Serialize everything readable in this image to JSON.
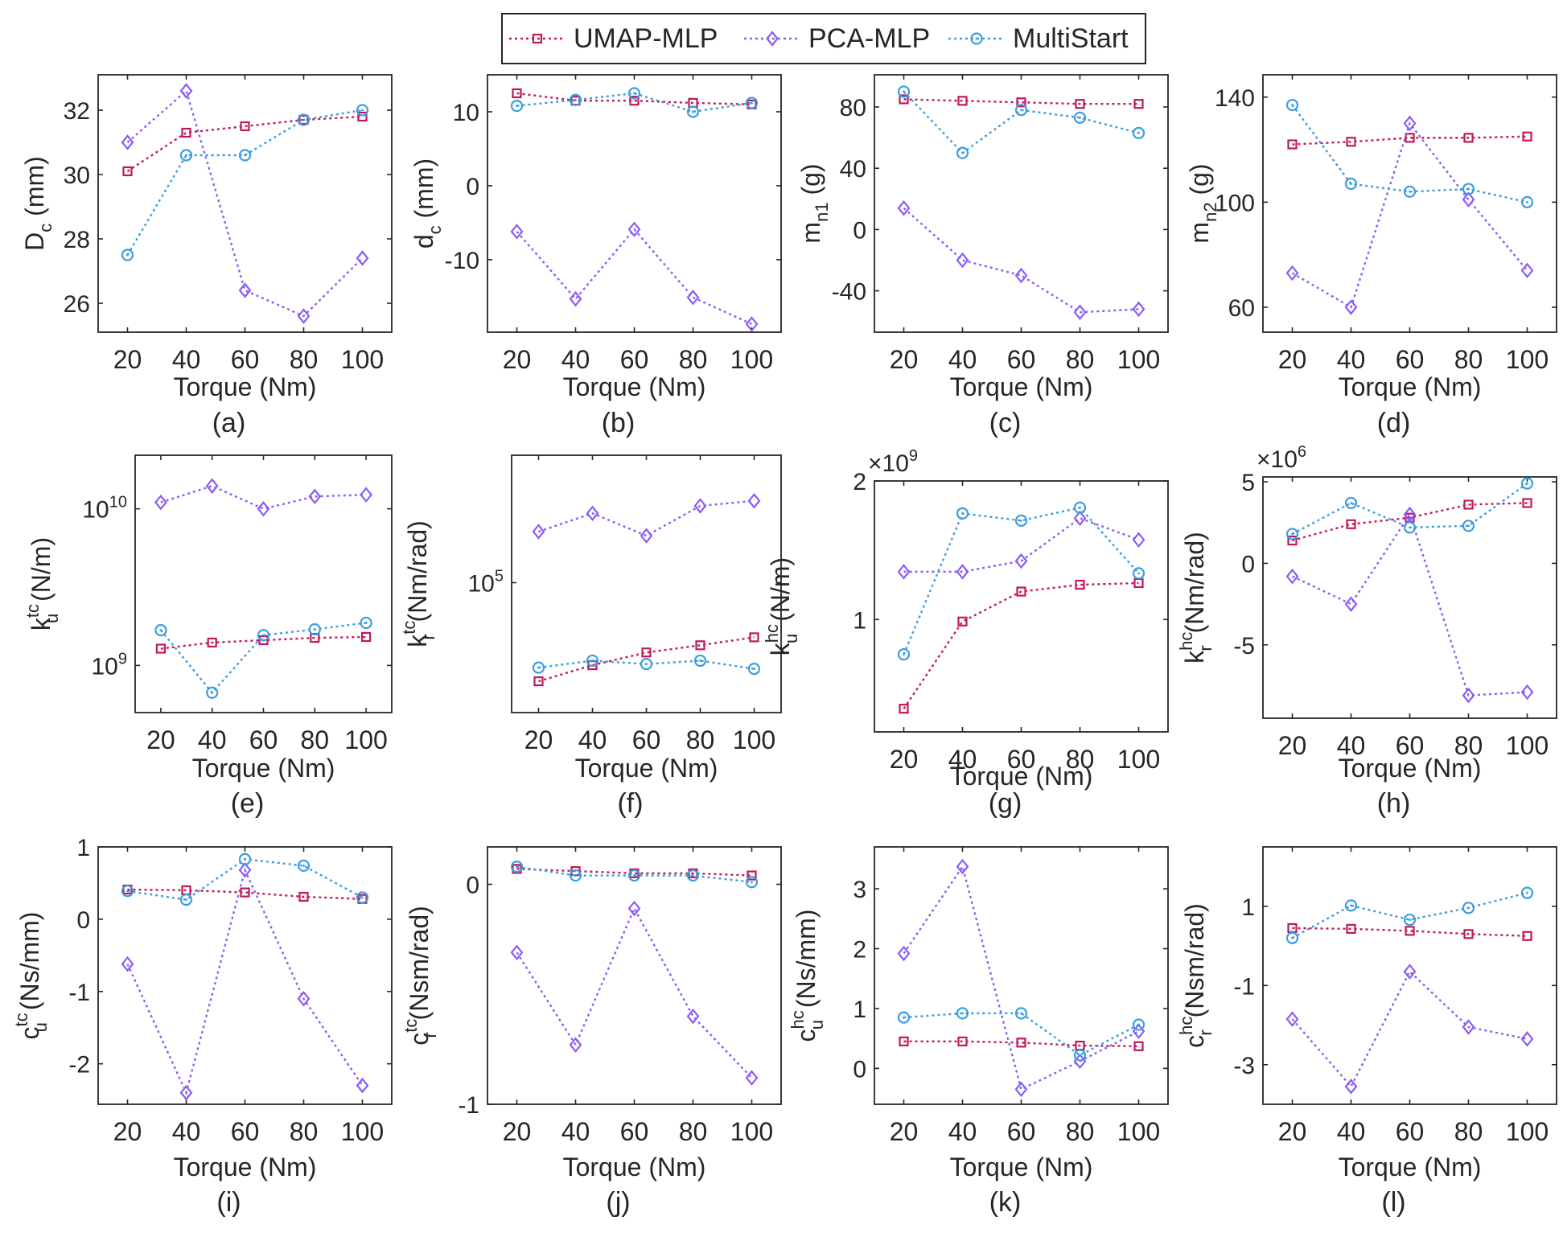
{
  "style": {
    "series_colors": {
      "UMAP-MLP": "#c2185b",
      "PCA-MLP": "#8b5cf6",
      "MultiStart": "#3b9de0"
    },
    "series_markers": {
      "UMAP-MLP": "square",
      "PCA-MLP": "diamond",
      "MultiStart": "circle"
    },
    "line_style": "dotted"
  },
  "legend": {
    "items": [
      "UMAP-MLP",
      "PCA-MLP",
      "MultiStart"
    ],
    "placement": "top-center"
  },
  "chart_data": [
    {
      "panel": "(a)",
      "type": "line",
      "xlabel": "Torque (Nm)",
      "ylabel": "D",
      "ylabel_sub": "c",
      "ylabel_unit": " (mm)",
      "x": [
        20,
        40,
        60,
        80,
        100
      ],
      "xlim": [
        10,
        110
      ],
      "ylim": [
        25.1,
        33.1
      ],
      "yticks": [
        26,
        28,
        30,
        32
      ],
      "ytick_labels": [
        "26",
        "28",
        "30",
        "32"
      ],
      "yscale": "linear",
      "series": [
        {
          "name": "UMAP-MLP",
          "values": [
            30.1,
            31.3,
            31.5,
            31.7,
            31.8
          ]
        },
        {
          "name": "PCA-MLP",
          "values": [
            31.0,
            32.6,
            26.4,
            25.6,
            27.4
          ]
        },
        {
          "name": "MultiStart",
          "values": [
            27.5,
            30.6,
            30.6,
            31.7,
            32.0
          ]
        }
      ]
    },
    {
      "panel": "(b)",
      "type": "line",
      "xlabel": "Torque (Nm)",
      "ylabel": "d",
      "ylabel_sub": "c",
      "ylabel_unit": " (mm)",
      "x": [
        20,
        40,
        60,
        80,
        100
      ],
      "xlim": [
        10,
        110
      ],
      "ylim": [
        -19.8,
        15
      ],
      "yticks": [
        -10,
        0,
        10
      ],
      "ytick_labels": [
        "-10",
        "0",
        "10"
      ],
      "yscale": "linear",
      "series": [
        {
          "name": "UMAP-MLP",
          "values": [
            12.5,
            11.5,
            11.5,
            11.2,
            11.0
          ]
        },
        {
          "name": "PCA-MLP",
          "values": [
            -6.2,
            -15.3,
            -5.9,
            -15.1,
            -18.7
          ]
        },
        {
          "name": "MultiStart",
          "values": [
            10.8,
            11.6,
            12.5,
            10.0,
            11.2
          ]
        }
      ]
    },
    {
      "panel": "(c)",
      "type": "line",
      "xlabel": "Torque (Nm)",
      "ylabel": "m",
      "ylabel_sub": "n1",
      "ylabel_unit": " (g)",
      "x": [
        20,
        40,
        60,
        80,
        100
      ],
      "xlim": [
        10,
        110
      ],
      "ylim": [
        -67,
        101
      ],
      "yticks": [
        -40,
        0,
        40,
        80
      ],
      "ytick_labels": [
        "-40",
        "0",
        "40",
        "80"
      ],
      "yscale": "linear",
      "series": [
        {
          "name": "UMAP-MLP",
          "values": [
            85,
            84,
            83,
            82,
            82
          ]
        },
        {
          "name": "PCA-MLP",
          "values": [
            14,
            -20,
            -30,
            -54,
            -52
          ]
        },
        {
          "name": "MultiStart",
          "values": [
            90,
            50,
            78,
            73,
            63
          ]
        }
      ]
    },
    {
      "panel": "(d)",
      "type": "line",
      "xlabel": "Torque (Nm)",
      "ylabel": "m",
      "ylabel_sub": "n2",
      "ylabel_unit": " (g)",
      "x": [
        20,
        40,
        60,
        80,
        100
      ],
      "xlim": [
        10,
        110
      ],
      "ylim": [
        50.5,
        148.5
      ],
      "yticks": [
        60,
        100,
        140
      ],
      "ytick_labels": [
        "60",
        "100",
        "140"
      ],
      "yscale": "linear",
      "series": [
        {
          "name": "UMAP-MLP",
          "values": [
            122,
            123,
            124.5,
            124.5,
            125
          ]
        },
        {
          "name": "PCA-MLP",
          "values": [
            73,
            60,
            130,
            101,
            74
          ]
        },
        {
          "name": "MultiStart",
          "values": [
            137,
            107,
            104,
            105,
            100
          ]
        }
      ]
    },
    {
      "panel": "(e)",
      "type": "line",
      "xlabel": "Torque (Nm)",
      "ylabel": "k",
      "ylabel_sub": "u",
      "ylabel_sup": "tc",
      "ylabel_unit": " (N/m)",
      "x": [
        20,
        40,
        60,
        80,
        100
      ],
      "xlim": [
        10,
        110
      ],
      "ylim": [
        500000000,
        22000000000
      ],
      "yticks": [
        1000000000,
        10000000000
      ],
      "ytick_labels": [
        "10|9",
        "10|10"
      ],
      "yscale": "log",
      "series": [
        {
          "name": "UMAP-MLP",
          "values": [
            1280000000,
            1400000000,
            1450000000,
            1500000000,
            1520000000
          ]
        },
        {
          "name": "PCA-MLP",
          "values": [
            11000000000,
            14000000000,
            10000000000,
            12000000000,
            12300000000
          ]
        },
        {
          "name": "MultiStart",
          "values": [
            1680000000,
            670000000,
            1560000000,
            1700000000,
            1870000000
          ]
        }
      ]
    },
    {
      "panel": "(f)",
      "type": "line",
      "xlabel": "Torque (Nm)",
      "ylabel": "k",
      "ylabel_sub": "r",
      "ylabel_sup": "tc",
      "ylabel_unit": " (Nm/rad)",
      "x": [
        20,
        40,
        60,
        80,
        100
      ],
      "xlim": [
        10,
        110
      ],
      "ylim": [
        12000,
        800000
      ],
      "yticks": [
        100000
      ],
      "ytick_labels": [
        "10|5"
      ],
      "yscale": "log",
      "series": [
        {
          "name": "UMAP-MLP",
          "values": [
            20000,
            26000,
            32000,
            36000,
            41000
          ]
        },
        {
          "name": "PCA-MLP",
          "values": [
            230000,
            310000,
            215000,
            350000,
            380000
          ]
        },
        {
          "name": "MultiStart",
          "values": [
            25000,
            28000,
            26500,
            28000,
            24500
          ]
        }
      ]
    },
    {
      "panel": "(g)",
      "type": "line",
      "xlabel": "Torque (Nm)",
      "ylabel": "k",
      "ylabel_sub": "u",
      "ylabel_sup": "hc",
      "ylabel_unit": " (N/m)",
      "x": [
        20,
        40,
        60,
        80,
        100
      ],
      "xlim": [
        10,
        110
      ],
      "ylim": [
        0.57,
        2.0
      ],
      "axis_multiplier": "×10|9",
      "yticks": [
        1,
        2
      ],
      "ytick_labels": [
        "1",
        "2"
      ],
      "yscale": "log",
      "series": [
        {
          "name": "UMAP-MLP",
          "values": [
            0.64,
            0.99,
            1.15,
            1.19,
            1.2
          ]
        },
        {
          "name": "PCA-MLP",
          "values": [
            1.27,
            1.27,
            1.34,
            1.66,
            1.49
          ]
        },
        {
          "name": "MultiStart",
          "values": [
            0.84,
            1.7,
            1.64,
            1.75,
            1.26
          ]
        }
      ]
    },
    {
      "panel": "(h)",
      "type": "line",
      "xlabel": "Torque (Nm)",
      "ylabel": "k",
      "ylabel_sub": "r",
      "ylabel_sup": "hc",
      "ylabel_unit": " (Nm/rad)",
      "x": [
        20,
        40,
        60,
        80,
        100
      ],
      "xlim": [
        10,
        110
      ],
      "ylim": [
        -9.5,
        5.3
      ],
      "axis_multiplier": "×10|6",
      "yticks": [
        -5,
        0,
        5
      ],
      "ytick_labels": [
        "-5",
        "0",
        "5"
      ],
      "yscale": "linear",
      "series": [
        {
          "name": "UMAP-MLP",
          "values": [
            1.4,
            2.4,
            2.8,
            3.6,
            3.7
          ]
        },
        {
          "name": "PCA-MLP",
          "values": [
            -0.8,
            -2.5,
            3.0,
            -8.1,
            -7.9
          ]
        },
        {
          "name": "MultiStart",
          "values": [
            1.8,
            3.7,
            2.2,
            2.3,
            4.9
          ]
        }
      ]
    },
    {
      "panel": "(i)",
      "type": "line",
      "xlabel": "Torque (Nm)",
      "ylabel": "c",
      "ylabel_sub": "u",
      "ylabel_sup": "tc",
      "ylabel_unit": " (Ns/mm)",
      "x": [
        20,
        40,
        60,
        80,
        100
      ],
      "xlim": [
        10,
        110
      ],
      "ylim": [
        -2.56,
        1.0
      ],
      "yticks": [
        -2,
        -1,
        0,
        1
      ],
      "ytick_labels": [
        "-2",
        "-1",
        "0",
        "1"
      ],
      "yscale": "linear",
      "series": [
        {
          "name": "UMAP-MLP",
          "values": [
            0.41,
            0.4,
            0.37,
            0.31,
            0.28
          ]
        },
        {
          "name": "PCA-MLP",
          "values": [
            -0.62,
            -2.4,
            0.68,
            -1.1,
            -2.3
          ]
        },
        {
          "name": "MultiStart",
          "values": [
            0.39,
            0.27,
            0.83,
            0.74,
            0.3
          ]
        }
      ]
    },
    {
      "panel": "(j)",
      "type": "line",
      "xlabel": "Torque (Nm)",
      "ylabel": "c",
      "ylabel_sub": "r",
      "ylabel_sup": "tc",
      "ylabel_unit": " (Nsm/rad)",
      "x": [
        20,
        40,
        60,
        80,
        100
      ],
      "xlim": [
        10,
        110
      ],
      "ylim": [
        -1.0,
        0.17
      ],
      "yticks": [
        -1,
        0
      ],
      "ytick_labels": [
        "-1",
        "0"
      ],
      "yscale": "linear",
      "series": [
        {
          "name": "UMAP-MLP",
          "values": [
            0.07,
            0.06,
            0.05,
            0.05,
            0.04
          ]
        },
        {
          "name": "PCA-MLP",
          "values": [
            -0.31,
            -0.73,
            -0.11,
            -0.6,
            -0.88
          ]
        },
        {
          "name": "MultiStart",
          "values": [
            0.08,
            0.04,
            0.04,
            0.04,
            0.01
          ]
        }
      ]
    },
    {
      "panel": "(k)",
      "type": "line",
      "xlabel": "Torque (Nm)",
      "ylabel": "c",
      "ylabel_sub": "u",
      "ylabel_sup": "hc",
      "ylabel_unit": " (Ns/mm)",
      "x": [
        20,
        40,
        60,
        80,
        100
      ],
      "xlim": [
        10,
        110
      ],
      "ylim": [
        -0.6,
        3.7
      ],
      "yticks": [
        0,
        1,
        2,
        3
      ],
      "ytick_labels": [
        "0",
        "1",
        "2",
        "3"
      ],
      "yscale": "linear",
      "series": [
        {
          "name": "UMAP-MLP",
          "values": [
            0.45,
            0.45,
            0.43,
            0.38,
            0.37
          ]
        },
        {
          "name": "PCA-MLP",
          "values": [
            1.92,
            3.37,
            -0.35,
            0.12,
            0.62
          ]
        },
        {
          "name": "MultiStart",
          "values": [
            0.85,
            0.92,
            0.92,
            0.22,
            0.73
          ]
        }
      ]
    },
    {
      "panel": "(l)",
      "type": "line",
      "xlabel": "Torque (Nm)",
      "ylabel": "c",
      "ylabel_sub": "r",
      "ylabel_sup": "hc",
      "ylabel_unit": " (Nsm/rad)",
      "x": [
        20,
        40,
        60,
        80,
        100
      ],
      "xlim": [
        10,
        110
      ],
      "ylim": [
        -4.0,
        2.5
      ],
      "yticks": [
        -3,
        -1,
        1
      ],
      "ytick_labels": [
        "-3",
        "-1",
        "1"
      ],
      "yscale": "linear",
      "series": [
        {
          "name": "UMAP-MLP",
          "values": [
            0.45,
            0.43,
            0.38,
            0.3,
            0.25
          ]
        },
        {
          "name": "PCA-MLP",
          "values": [
            -1.85,
            -3.55,
            -0.65,
            -2.05,
            -2.35
          ]
        },
        {
          "name": "MultiStart",
          "values": [
            0.2,
            1.02,
            0.66,
            0.96,
            1.34
          ]
        }
      ]
    }
  ]
}
